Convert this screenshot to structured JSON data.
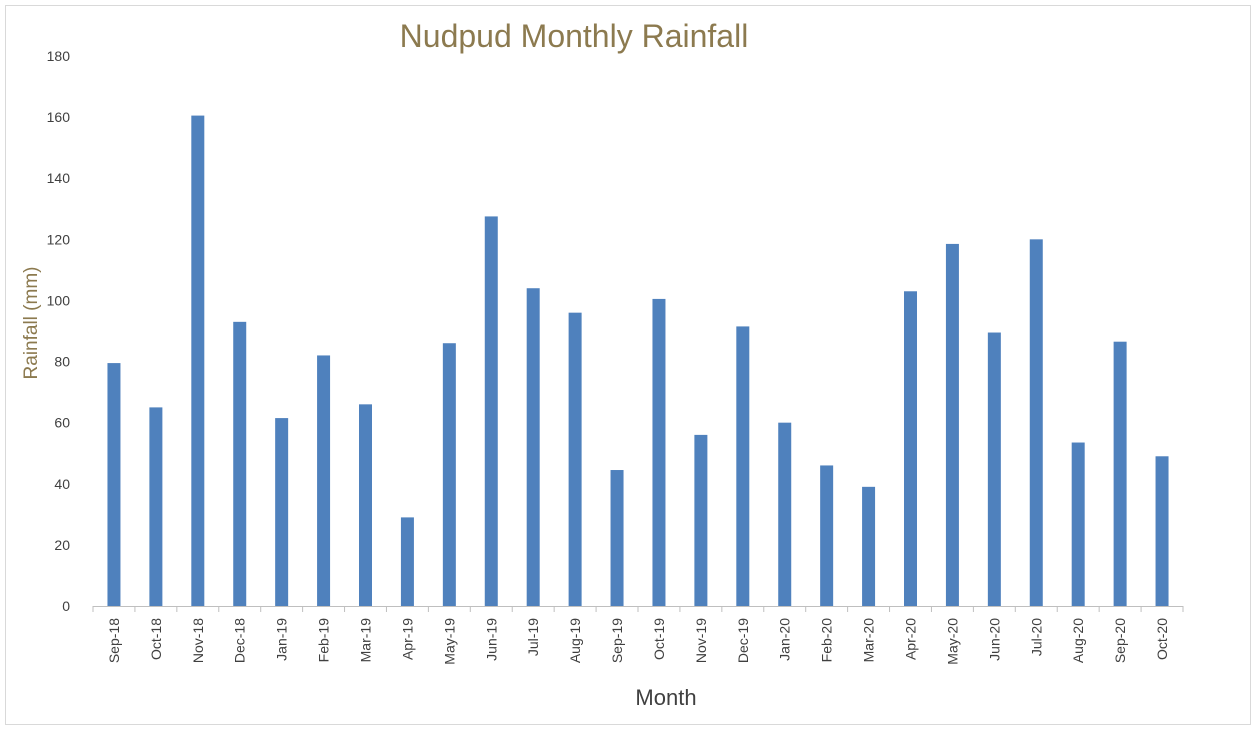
{
  "chart_data": {
    "type": "bar",
    "title": "Nudpud Monthly Rainfall",
    "xlabel": "Month",
    "ylabel": "Rainfall  (mm)",
    "ylim": [
      0,
      180
    ],
    "yticks": [
      0,
      20,
      40,
      60,
      80,
      100,
      120,
      140,
      160,
      180
    ],
    "grid": false,
    "colors": {
      "bar": "#4f81bd",
      "title": "#8c7a4f",
      "axis": "#bfbfbf"
    },
    "categories": [
      "Sep-18",
      "Oct-18",
      "Nov-18",
      "Dec-18",
      "Jan-19",
      "Feb-19",
      "Mar-19",
      "Apr-19",
      "May-19",
      "Jun-19",
      "Jul-19",
      "Aug-19",
      "Sep-19",
      "Oct-19",
      "Nov-19",
      "Dec-19",
      "Jan-20",
      "Feb-20",
      "Mar-20",
      "Apr-20",
      "May-20",
      "Jun-20",
      "Jul-20",
      "Aug-20",
      "Sep-20",
      "Oct-20"
    ],
    "series": [
      {
        "name": "Rainfall",
        "values": [
          79.5,
          65,
          160.5,
          93,
          61.5,
          82,
          66,
          29,
          86,
          127.5,
          104,
          96,
          44.5,
          100.5,
          56,
          91.5,
          60,
          46,
          39,
          103,
          118.5,
          89.5,
          120,
          53.5,
          86.5,
          49
        ]
      }
    ]
  }
}
